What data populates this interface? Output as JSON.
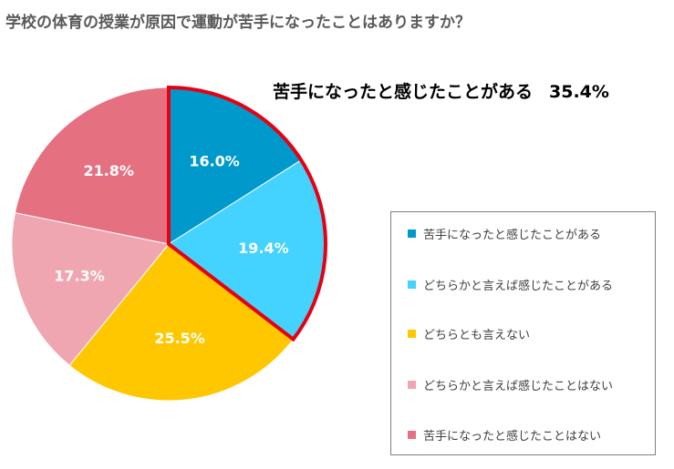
{
  "title": "学校の体育の授業が原因で運動が苦手になったことはありますか？",
  "highlight": {
    "label": "苦手になったと感じたことがある",
    "value": "35.4%"
  },
  "chart_data": {
    "type": "pie",
    "title": "学校の体育の授業が原因で運動が苦手になったことはありますか？",
    "slices": [
      {
        "label": "苦手になったと感じたことがある",
        "value": 16.0,
        "display": "16.0%",
        "color": "#0099CC"
      },
      {
        "label": "どちらかと言えば感じたことがある",
        "value": 19.4,
        "display": "19.4%",
        "color": "#44D2FF"
      },
      {
        "label": "どちらとも言えない",
        "value": 25.5,
        "display": "25.5%",
        "color": "#FFC700"
      },
      {
        "label": "どちらかと言えば感じたことはない",
        "value": 17.3,
        "display": "17.3%",
        "color": "#F0A6B0"
      },
      {
        "label": "苦手になったと感じたことはない",
        "value": 21.8,
        "display": "21.8%",
        "color": "#E57080"
      }
    ],
    "highlighted_slices": [
      0,
      1
    ],
    "highlight_color": "#E60012",
    "legend_placement": "right"
  }
}
